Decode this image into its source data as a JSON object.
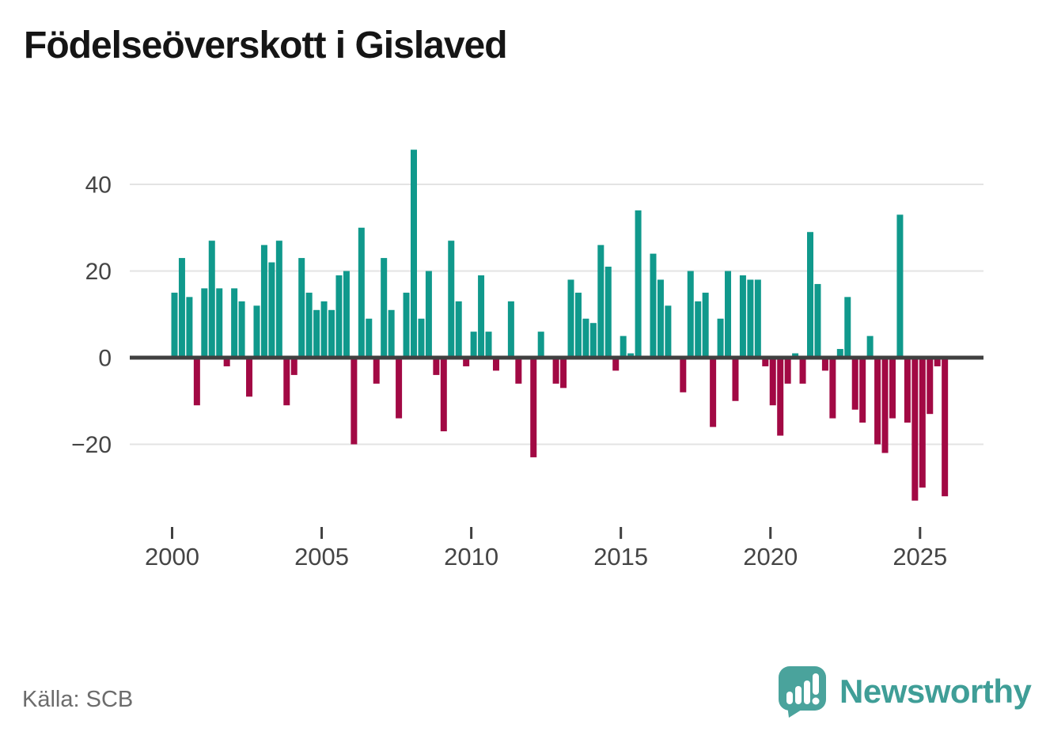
{
  "title": "Födelseöverskott i Gislaved",
  "source": "Källa: SCB",
  "branding": {
    "name": "Newsworthy",
    "color": "#3f9e97",
    "icon": "speech-bubble-bar-chart-icon"
  },
  "colors": {
    "positive_bar": "#10998c",
    "negative_bar": "#a20944",
    "grid": "#e3e3e3",
    "axis": "#404040",
    "tick_label": "#454545"
  },
  "chart_data": {
    "type": "bar",
    "title": "Födelseöverskott i Gislaved",
    "frequency": "quarterly",
    "xlabel": "",
    "ylabel": "",
    "ylim": [
      -35,
      50
    ],
    "grid": true,
    "legend": "none",
    "x_tick_labels": [
      "2000",
      "2005",
      "2010",
      "2015",
      "2020",
      "2025"
    ],
    "y_ticks": [
      {
        "label": "40",
        "value": 40
      },
      {
        "label": "20",
        "value": 20
      },
      {
        "label": "0",
        "value": 0
      },
      {
        "label": "−20",
        "value": -20
      }
    ],
    "series": [
      {
        "year": 2000,
        "values": [
          15,
          23,
          14,
          -11
        ]
      },
      {
        "year": 2001,
        "values": [
          16,
          27,
          16,
          -2
        ]
      },
      {
        "year": 2002,
        "values": [
          16,
          13,
          -9,
          12
        ]
      },
      {
        "year": 2003,
        "values": [
          26,
          22,
          27,
          -11
        ]
      },
      {
        "year": 2004,
        "values": [
          -4,
          23,
          15,
          11
        ]
      },
      {
        "year": 2005,
        "values": [
          13,
          11,
          19,
          20
        ]
      },
      {
        "year": 2006,
        "values": [
          -20,
          30,
          9,
          -6
        ]
      },
      {
        "year": 2007,
        "values": [
          23,
          11,
          -14,
          15
        ]
      },
      {
        "year": 2008,
        "values": [
          48,
          9,
          20,
          -4
        ]
      },
      {
        "year": 2009,
        "values": [
          -17,
          27,
          13,
          -2
        ]
      },
      {
        "year": 2010,
        "values": [
          6,
          19,
          6,
          -3
        ]
      },
      {
        "year": 2011,
        "values": [
          0,
          13,
          -6,
          0
        ]
      },
      {
        "year": 2012,
        "values": [
          -23,
          6,
          0,
          -6
        ]
      },
      {
        "year": 2013,
        "values": [
          -7,
          18,
          15,
          9
        ]
      },
      {
        "year": 2014,
        "values": [
          8,
          26,
          21,
          -3
        ]
      },
      {
        "year": 2015,
        "values": [
          5,
          1,
          34,
          0
        ]
      },
      {
        "year": 2016,
        "values": [
          24,
          18,
          12,
          0
        ]
      },
      {
        "year": 2017,
        "values": [
          -8,
          20,
          13,
          15
        ]
      },
      {
        "year": 2018,
        "values": [
          -16,
          9,
          20,
          -10
        ]
      },
      {
        "year": 2019,
        "values": [
          19,
          18,
          18,
          -2
        ]
      },
      {
        "year": 2020,
        "values": [
          -11,
          -18,
          -6,
          1
        ]
      },
      {
        "year": 2021,
        "values": [
          -6,
          29,
          17,
          -3
        ]
      },
      {
        "year": 2022,
        "values": [
          -14,
          2,
          14,
          -12
        ]
      },
      {
        "year": 2023,
        "values": [
          -15,
          5,
          -20,
          -22
        ]
      },
      {
        "year": 2024,
        "values": [
          -14,
          33,
          -15,
          -33
        ]
      },
      {
        "year": 2025,
        "values": [
          -30,
          -13,
          -2,
          -32
        ]
      }
    ]
  }
}
